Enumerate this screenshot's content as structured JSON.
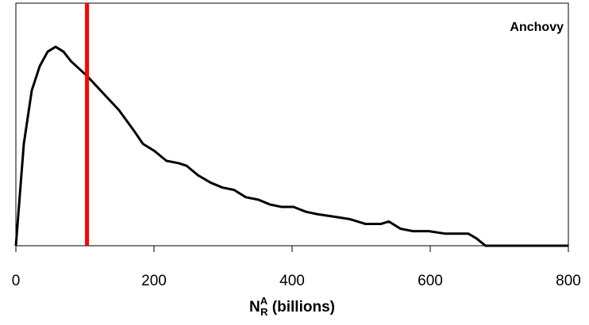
{
  "chart_data": {
    "type": "line",
    "annotation": "Anchovy",
    "xlabel": [
      "N",
      "A",
      "R",
      " (billions)"
    ],
    "x": [
      0,
      11.5,
      23,
      34.5,
      46,
      57.5,
      69,
      80,
      103,
      126,
      149,
      172,
      184,
      201,
      218,
      236,
      247,
      264,
      282,
      299,
      316,
      333,
      351,
      368,
      385,
      402,
      420,
      437,
      460,
      483,
      506,
      529,
      540,
      557,
      575,
      598,
      621,
      655,
      667,
      680,
      800
    ],
    "series": [
      {
        "color": "#000000",
        "values": [
          0,
          0.42,
          0.64,
          0.74,
          0.8,
          0.82,
          0.8,
          0.76,
          0.7,
          0.63,
          0.56,
          0.47,
          0.42,
          0.39,
          0.35,
          0.34,
          0.33,
          0.29,
          0.26,
          0.24,
          0.23,
          0.2,
          0.19,
          0.17,
          0.16,
          0.16,
          0.14,
          0.13,
          0.12,
          0.11,
          0.09,
          0.09,
          0.1,
          0.07,
          0.06,
          0.06,
          0.05,
          0.05,
          0.03,
          0,
          0
        ]
      }
    ],
    "vline": {
      "x": 103,
      "color": "#ff0000"
    },
    "xlim": [
      0,
      800
    ],
    "xticks": [
      0,
      200,
      400,
      600,
      800
    ],
    "ylim": [
      0,
      1
    ]
  }
}
